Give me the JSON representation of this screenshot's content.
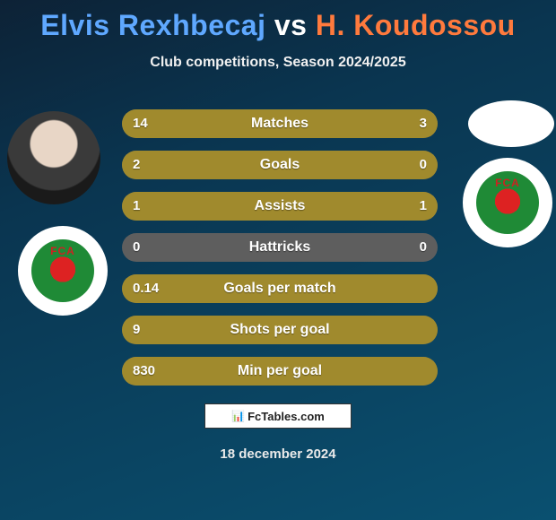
{
  "title": {
    "player1": "Elvis Rexhbecaj",
    "vs": "vs",
    "player2": "H. Koudossou",
    "player1_color": "#5fa8ff",
    "vs_color": "#ffffff",
    "player2_color": "#ff7a3d",
    "fontsize": 32
  },
  "subtitle": "Club competitions, Season 2024/2025",
  "background_gradient": [
    "#0d2236",
    "#0a3550",
    "#0a5070"
  ],
  "bar": {
    "fill_color": "#a08a2d",
    "empty_color": "#5e5e5e",
    "text_color": "#ffffff",
    "height": 32,
    "radius": 16,
    "gap": 14,
    "label_fontsize": 16,
    "value_fontsize": 15
  },
  "rows": [
    {
      "label": "Matches",
      "left": "14",
      "right": "3",
      "left_pct": 82,
      "right_pct": 18
    },
    {
      "label": "Goals",
      "left": "2",
      "right": "0",
      "left_pct": 100,
      "right_pct": 0
    },
    {
      "label": "Assists",
      "left": "1",
      "right": "1",
      "left_pct": 50,
      "right_pct": 50
    },
    {
      "label": "Hattricks",
      "left": "0",
      "right": "0",
      "left_pct": 0,
      "right_pct": 0
    },
    {
      "label": "Goals per match",
      "left": "0.14",
      "right": "",
      "left_pct": 100,
      "right_pct": 0
    },
    {
      "label": "Shots per goal",
      "left": "9",
      "right": "",
      "left_pct": 100,
      "right_pct": 0
    },
    {
      "label": "Min per goal",
      "left": "830",
      "right": "",
      "left_pct": 100,
      "right_pct": 0
    }
  ],
  "credit": {
    "logo_text": "📊",
    "text": "FcTables.com"
  },
  "date": "18 december 2024",
  "clubs": {
    "left_badge": "FCA",
    "right_badge": "FCA"
  }
}
